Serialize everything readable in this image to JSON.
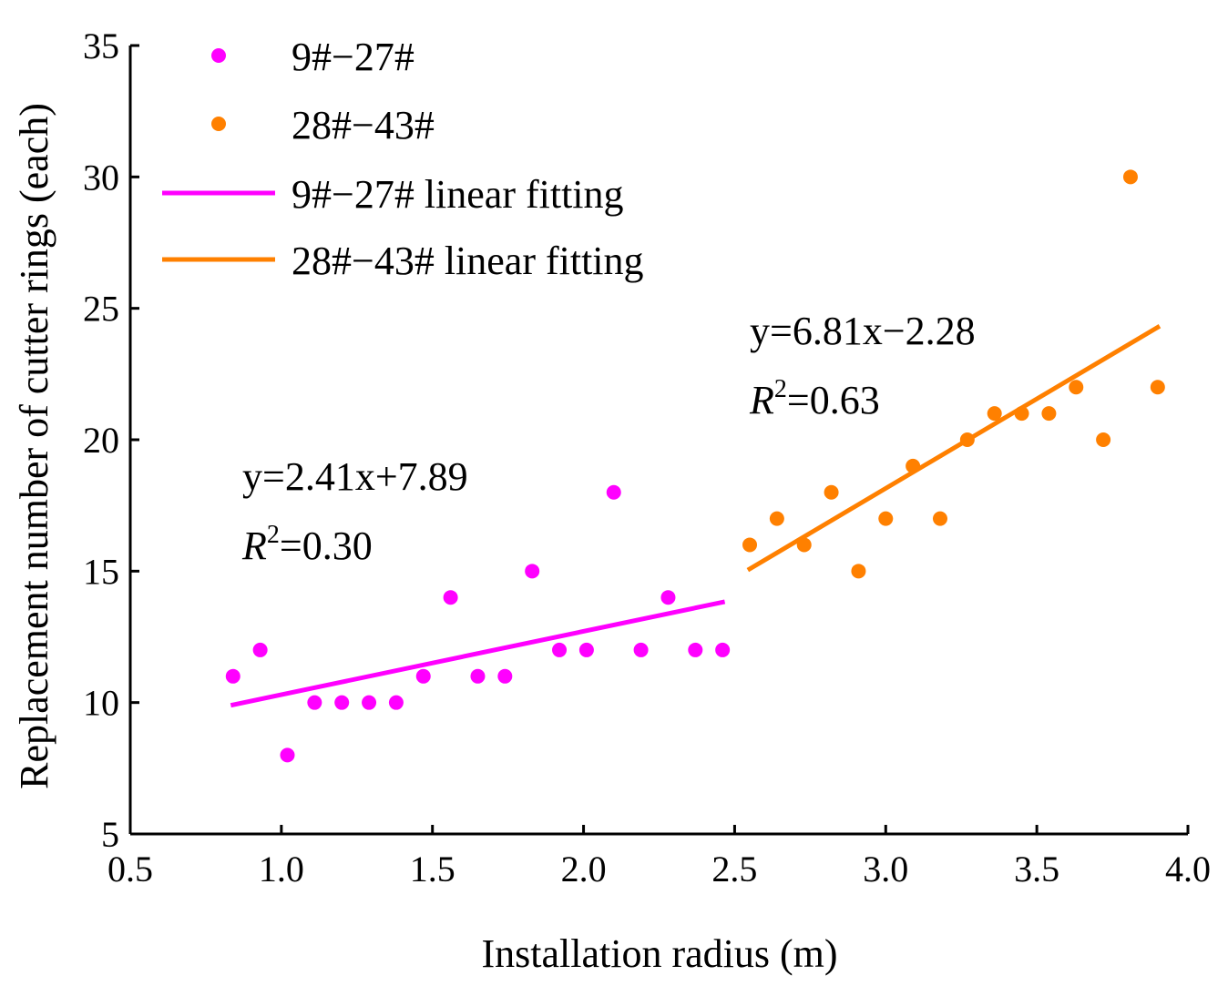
{
  "chart_data": {
    "type": "scatter",
    "title": "",
    "xlabel": "Installation radius (m)",
    "ylabel": "Replacement number of cutter rings (each)",
    "xlim": [
      0.5,
      4.0
    ],
    "ylim": [
      5,
      35
    ],
    "xticks": [
      "0.5",
      "1.0",
      "1.5",
      "2.0",
      "2.5",
      "3.0",
      "3.5",
      "4.0"
    ],
    "yticks": [
      "5",
      "10",
      "15",
      "20",
      "25",
      "30",
      "35"
    ],
    "legend_position": "top-left",
    "series": [
      {
        "name": "9#−27#",
        "kind": "scatter",
        "color": "#ff00ff",
        "points": [
          [
            0.84,
            11
          ],
          [
            0.93,
            12
          ],
          [
            1.02,
            8
          ],
          [
            1.11,
            10
          ],
          [
            1.2,
            10
          ],
          [
            1.29,
            10
          ],
          [
            1.38,
            10
          ],
          [
            1.47,
            11
          ],
          [
            1.56,
            14
          ],
          [
            1.65,
            11
          ],
          [
            1.74,
            11
          ],
          [
            1.83,
            15
          ],
          [
            1.92,
            12
          ],
          [
            2.01,
            12
          ],
          [
            2.1,
            18
          ],
          [
            2.19,
            12
          ],
          [
            2.28,
            14
          ],
          [
            2.37,
            12
          ],
          [
            2.46,
            12
          ]
        ]
      },
      {
        "name": "28#−43#",
        "kind": "scatter",
        "color": "#ff8000",
        "points": [
          [
            2.55,
            16
          ],
          [
            2.64,
            17
          ],
          [
            2.73,
            16
          ],
          [
            2.82,
            18
          ],
          [
            2.91,
            15
          ],
          [
            3.0,
            17
          ],
          [
            3.09,
            19
          ],
          [
            3.18,
            17
          ],
          [
            3.27,
            20
          ],
          [
            3.36,
            21
          ],
          [
            3.45,
            21
          ],
          [
            3.54,
            21
          ],
          [
            3.63,
            22
          ],
          [
            3.72,
            20
          ],
          [
            3.81,
            30
          ],
          [
            3.9,
            22
          ]
        ]
      },
      {
        "name": "9#−27# linear fitting",
        "kind": "line",
        "color": "#ff00ff",
        "slope": 2.41,
        "intercept": 7.89,
        "x_range": [
          0.84,
          2.46
        ]
      },
      {
        "name": "28#−43# linear fitting",
        "kind": "line",
        "color": "#ff8000",
        "slope": 6.81,
        "intercept": -2.28,
        "x_range": [
          2.55,
          3.9
        ]
      }
    ],
    "annotations": [
      {
        "name": "fit-equation-1",
        "equation": "y=2.41x+7.89",
        "r2_symbol": "R",
        "r2_power": "2",
        "r2_value": "=0.30"
      },
      {
        "name": "fit-equation-2",
        "equation": "y=6.81x−2.28",
        "r2_symbol": "R",
        "r2_power": "2",
        "r2_value": "=0.63"
      }
    ]
  }
}
